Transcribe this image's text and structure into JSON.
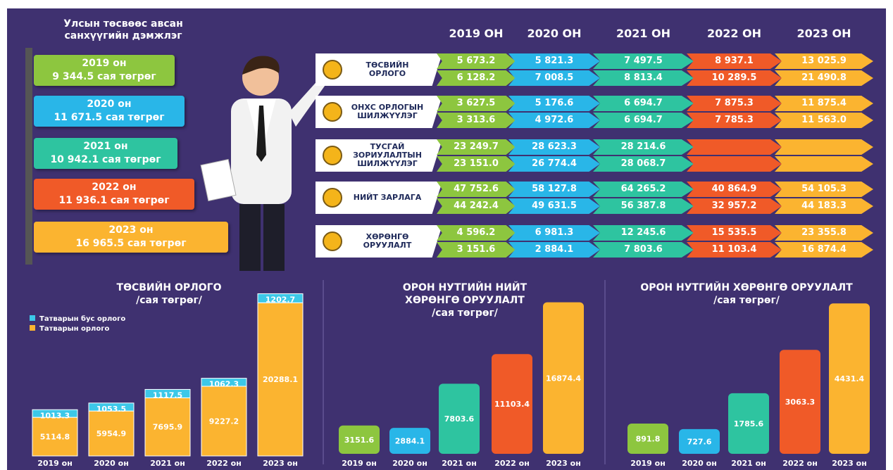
{
  "support": {
    "title": "Улсын төсвөөс авсан санхүүгийн дэмжлэг",
    "cards": [
      {
        "year": "2019 он",
        "amount": "9 344.5 сая төгрөг"
      },
      {
        "year": "2020 он",
        "amount": "11 671.5 сая төгрөг"
      },
      {
        "year": "2021 он",
        "amount": "10 942.1 сая төгрөг"
      },
      {
        "year": "2022 он",
        "amount": "11 936.1 сая төгрөг"
      },
      {
        "year": "2023 он",
        "amount": "16 965.5 сая төгрөг"
      }
    ]
  },
  "table": {
    "columns": [
      "2019 ОН",
      "2020 ОН",
      "2021 ОН",
      "2022 ОН",
      "2023 ОН"
    ],
    "rows": [
      {
        "label": "ТӨСВИЙН ОРЛОГО",
        "values": [
          [
            "5 673.2",
            "6 128.2"
          ],
          [
            "5 821.3",
            "7 008.5"
          ],
          [
            "7 497.5",
            "8 813.4"
          ],
          [
            "8 937.1",
            "10 289.5"
          ],
          [
            "13 025.9",
            "21 490.8"
          ]
        ]
      },
      {
        "label": "ОНХС ОРЛОГЫН ШИЛЖҮҮЛЭГ",
        "values": [
          [
            "3 627.5",
            "3 313.6"
          ],
          [
            "5 176.6",
            "4 972.6"
          ],
          [
            "6 694.7",
            "6 694.7"
          ],
          [
            "7 875.3",
            "7 785.3"
          ],
          [
            "11 875.4",
            "11 563.0"
          ]
        ]
      },
      {
        "label": "ТУСГАЙ ЗОРИУЛАЛТЫН ШИЛЖҮҮЛЭГ",
        "values": [
          [
            "23 249.7",
            "23 151.0"
          ],
          [
            "28 623.3",
            "26 774.4"
          ],
          [
            "28 214.6",
            "28 068.7"
          ],
          [
            null,
            null
          ],
          [
            null,
            null
          ]
        ]
      },
      {
        "label": "НИЙТ ЗАРЛАГА",
        "values": [
          [
            "47 752.6",
            "44 242.4"
          ],
          [
            "58 127.8",
            "49 631.5"
          ],
          [
            "64 265.2",
            "56 387.8"
          ],
          [
            "40 864.9",
            "32 957.2"
          ],
          [
            "54 105.3",
            "44 183.3"
          ]
        ]
      },
      {
        "label": "ХӨРӨНГӨ ОРУУЛАЛТ",
        "values": [
          [
            "4 596.2",
            "3 151.6"
          ],
          [
            "6 981.3",
            "2 884.1"
          ],
          [
            "12 245.6",
            "7 803.6"
          ],
          [
            "15 535.5",
            "11 103.4"
          ],
          [
            "23 355.8",
            "16 874.4"
          ]
        ]
      }
    ]
  },
  "chart_data": [
    {
      "type": "bar",
      "stacked": true,
      "title": "ТӨСВИЙН ОРЛОГО",
      "subtitle": "/сая төгрөг/",
      "categories": [
        "2019 он",
        "2020 он",
        "2021 он",
        "2022 он",
        "2023 он"
      ],
      "series": [
        {
          "name": "Татварын бус орлого",
          "color": "#3cc8e8",
          "values": [
            1013.3,
            1053.5,
            1117.5,
            1062.3,
            1202.7
          ]
        },
        {
          "name": "Татварын орлого",
          "color": "#fbb430",
          "values": [
            5114.8,
            5954.9,
            7695.9,
            9227.2,
            20288.1
          ]
        }
      ],
      "ylim": [
        0,
        22000
      ]
    },
    {
      "type": "bar",
      "title": "ОРОН НУТГИЙН НИЙТ ХӨРӨНГӨ ОРУУЛАЛТ",
      "subtitle": "/сая төгрөг/",
      "categories": [
        "2019 он",
        "2020 он",
        "2021 он",
        "2022 он",
        "2023 он"
      ],
      "values": [
        3151.6,
        2884.1,
        7803.6,
        11103.4,
        16874.4
      ],
      "colors": [
        "#8dc63f",
        "#29b6e8",
        "#2ec4a0",
        "#f05a28",
        "#fbb430"
      ],
      "ylim": [
        0,
        17000
      ]
    },
    {
      "type": "bar",
      "title": "ОРОН НУТГИЙН ХӨРӨНГӨ ОРУУЛАЛТ",
      "subtitle": "/сая төгрөг/",
      "categories": [
        "2019 он",
        "2020 он",
        "2021 он",
        "2022 он",
        "2023 он"
      ],
      "values": [
        891.8,
        727.6,
        1785.6,
        3063.3,
        4431.4
      ],
      "colors": [
        "#8dc63f",
        "#29b6e8",
        "#2ec4a0",
        "#f05a28",
        "#fbb430"
      ],
      "ylim": [
        0,
        4500
      ]
    }
  ]
}
